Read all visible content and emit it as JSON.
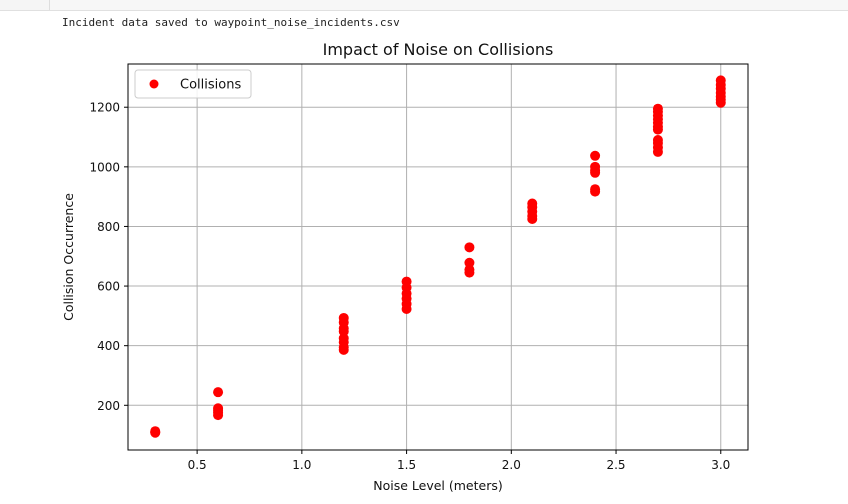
{
  "cell_output": {
    "text": "Incident data saved to waypoint_noise_incidents.csv"
  },
  "chart_data": {
    "type": "scatter",
    "title": "Impact of Noise on Collisions",
    "xlabel": "Noise Level (meters)",
    "ylabel": "Collision Occurrence",
    "xlim": [
      0.17,
      3.13
    ],
    "ylim": [
      50,
      1345
    ],
    "xticks": [
      0.5,
      1.0,
      1.5,
      2.0,
      2.5,
      3.0
    ],
    "xtick_labels": [
      "0.5",
      "1.0",
      "1.5",
      "2.0",
      "2.5",
      "3.0"
    ],
    "yticks": [
      200,
      400,
      600,
      800,
      1000,
      1200
    ],
    "ytick_labels": [
      "200",
      "400",
      "600",
      "800",
      "1000",
      "1200"
    ],
    "grid": true,
    "legend": "top-left",
    "series": [
      {
        "name": "Collisions",
        "color": "#ff0000",
        "points": [
          [
            0.3,
            108
          ],
          [
            0.3,
            113
          ],
          [
            0.3,
            110
          ],
          [
            0.6,
            167
          ],
          [
            0.6,
            175
          ],
          [
            0.6,
            183
          ],
          [
            0.6,
            190
          ],
          [
            0.6,
            244
          ],
          [
            1.2,
            386
          ],
          [
            1.2,
            395
          ],
          [
            1.2,
            412
          ],
          [
            1.2,
            425
          ],
          [
            1.2,
            448
          ],
          [
            1.2,
            458
          ],
          [
            1.2,
            478
          ],
          [
            1.2,
            493
          ],
          [
            1.5,
            523
          ],
          [
            1.5,
            540
          ],
          [
            1.5,
            558
          ],
          [
            1.5,
            575
          ],
          [
            1.5,
            595
          ],
          [
            1.5,
            615
          ],
          [
            1.8,
            645
          ],
          [
            1.8,
            655
          ],
          [
            1.8,
            678
          ],
          [
            1.8,
            730
          ],
          [
            2.1,
            825
          ],
          [
            2.1,
            835
          ],
          [
            2.1,
            850
          ],
          [
            2.1,
            865
          ],
          [
            2.1,
            877
          ],
          [
            2.4,
            917
          ],
          [
            2.4,
            925
          ],
          [
            2.4,
            980
          ],
          [
            2.4,
            988
          ],
          [
            2.4,
            1000
          ],
          [
            2.4,
            1037
          ],
          [
            2.7,
            1050
          ],
          [
            2.7,
            1065
          ],
          [
            2.7,
            1080
          ],
          [
            2.7,
            1090
          ],
          [
            2.7,
            1125
          ],
          [
            2.7,
            1135
          ],
          [
            2.7,
            1148
          ],
          [
            2.7,
            1160
          ],
          [
            2.7,
            1172
          ],
          [
            2.7,
            1185
          ],
          [
            2.7,
            1195
          ],
          [
            3.0,
            1215
          ],
          [
            3.0,
            1225
          ],
          [
            3.0,
            1235
          ],
          [
            3.0,
            1248
          ],
          [
            3.0,
            1262
          ],
          [
            3.0,
            1275
          ],
          [
            3.0,
            1290
          ]
        ]
      }
    ]
  }
}
